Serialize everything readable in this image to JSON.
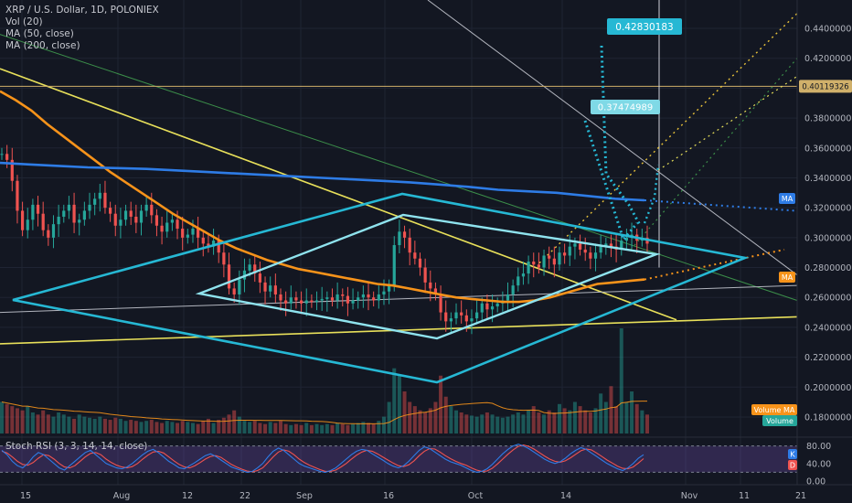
{
  "chart_data": {
    "type": "candlestick",
    "title": "XRP / U.S. Dollar, 1D, POLONIEX",
    "indicators": [
      "Vol (20)",
      "MA (50, close)",
      "MA (200, close)"
    ],
    "price_axis": {
      "ticks": [
        "0.44000000",
        "0.42000000",
        "0.40000000",
        "0.38000000",
        "0.36000000",
        "0.34000000",
        "0.32000000",
        "0.30000000",
        "0.28000000",
        "0.26000000",
        "0.24000000",
        "0.22000000",
        "0.20000000",
        "0.18000000"
      ],
      "range": [
        0.17,
        0.455
      ]
    },
    "time_axis": {
      "ticks": [
        "15",
        "Aug",
        "12",
        "22",
        "Sep",
        "16",
        "Oct",
        "14",
        "Nov",
        "11",
        "21"
      ]
    },
    "price_labels": {
      "horizontal_level": "0.40119326",
      "annotation_high": "0.42830183",
      "annotation_mid": "0.37474989",
      "ma_label": "MA",
      "ma_small": "MA",
      "volume_ma": "Volume MA",
      "volume": "Volume"
    },
    "rsi": {
      "title": "Stoch RSI (3, 3, 14, 14, close)",
      "ticks": [
        "80.00",
        "40.00",
        "0.00"
      ],
      "k_label": "K",
      "d_label": "D",
      "range": [
        0,
        100
      ],
      "upper_band": 80,
      "lower_band": 20
    },
    "candles_close": [
      0.356,
      0.352,
      0.338,
      0.318,
      0.305,
      0.312,
      0.322,
      0.316,
      0.305,
      0.3,
      0.309,
      0.314,
      0.318,
      0.322,
      0.31,
      0.312,
      0.318,
      0.322,
      0.326,
      0.33,
      0.32,
      0.316,
      0.308,
      0.312,
      0.318,
      0.314,
      0.31,
      0.318,
      0.322,
      0.315,
      0.308,
      0.304,
      0.31,
      0.312,
      0.306,
      0.3,
      0.302,
      0.306,
      0.3,
      0.296,
      0.294,
      0.298,
      0.29,
      0.282,
      0.266,
      0.262,
      0.272,
      0.278,
      0.282,
      0.276,
      0.27,
      0.264,
      0.268,
      0.262,
      0.258,
      0.256,
      0.26,
      0.258,
      0.256,
      0.258,
      0.257,
      0.258,
      0.259,
      0.26,
      0.258,
      0.262,
      0.261,
      0.256,
      0.258,
      0.26,
      0.262,
      0.26,
      0.258,
      0.262,
      0.264,
      0.268,
      0.295,
      0.304,
      0.3,
      0.29,
      0.286,
      0.28,
      0.27,
      0.266,
      0.262,
      0.25,
      0.244,
      0.246,
      0.25,
      0.248,
      0.244,
      0.246,
      0.25,
      0.256,
      0.252,
      0.254,
      0.256,
      0.258,
      0.262,
      0.268,
      0.274,
      0.276,
      0.284,
      0.282,
      0.28,
      0.288,
      0.286,
      0.282,
      0.29,
      0.288,
      0.294,
      0.296,
      0.292,
      0.29,
      0.286,
      0.29,
      0.294,
      0.296,
      0.294,
      0.292,
      0.298,
      0.3,
      0.302,
      0.298,
      0.3,
      0.296
    ],
    "ma50": [
      0.398,
      0.392,
      0.385,
      0.376,
      0.368,
      0.36,
      0.352,
      0.344,
      0.337,
      0.33,
      0.323,
      0.316,
      0.31,
      0.304,
      0.298,
      0.293,
      0.289,
      0.285,
      0.282,
      0.279,
      0.277,
      0.275,
      0.273,
      0.271,
      0.269,
      0.268,
      0.266,
      0.264,
      0.262,
      0.26,
      0.259,
      0.258,
      0.257,
      0.257,
      0.258,
      0.26,
      0.263,
      0.266,
      0.269,
      0.27,
      0.271,
      0.272
    ],
    "ma200": [
      0.35,
      0.349,
      0.348,
      0.347,
      0.3465,
      0.346,
      0.345,
      0.344,
      0.343,
      0.342,
      0.341,
      0.34,
      0.339,
      0.338,
      0.337,
      0.3355,
      0.334,
      0.332,
      0.331,
      0.33,
      0.328,
      0.326,
      0.325
    ],
    "volume": [
      0.3,
      0.28,
      0.26,
      0.24,
      0.22,
      0.26,
      0.2,
      0.18,
      0.22,
      0.18,
      0.16,
      0.2,
      0.18,
      0.16,
      0.14,
      0.18,
      0.16,
      0.15,
      0.14,
      0.16,
      0.14,
      0.13,
      0.15,
      0.14,
      0.12,
      0.13,
      0.12,
      0.11,
      0.12,
      0.13,
      0.11,
      0.1,
      0.12,
      0.11,
      0.1,
      0.12,
      0.11,
      0.1,
      0.09,
      0.12,
      0.14,
      0.1,
      0.13,
      0.15,
      0.18,
      0.22,
      0.16,
      0.12,
      0.11,
      0.12,
      0.1,
      0.09,
      0.11,
      0.1,
      0.12,
      0.09,
      0.08,
      0.09,
      0.08,
      0.1,
      0.08,
      0.09,
      0.08,
      0.09,
      0.08,
      0.1,
      0.09,
      0.08,
      0.09,
      0.1,
      0.11,
      0.1,
      0.09,
      0.12,
      0.16,
      0.3,
      0.62,
      0.55,
      0.4,
      0.3,
      0.26,
      0.22,
      0.2,
      0.24,
      0.3,
      0.55,
      0.35,
      0.26,
      0.22,
      0.2,
      0.18,
      0.17,
      0.16,
      0.18,
      0.2,
      0.18,
      0.16,
      0.15,
      0.16,
      0.18,
      0.2,
      0.18,
      0.22,
      0.26,
      0.2,
      0.18,
      0.22,
      0.2,
      0.28,
      0.24,
      0.22,
      0.3,
      0.26,
      0.22,
      0.2,
      0.24,
      0.38,
      0.3,
      0.45,
      0.26,
      1.0,
      0.3,
      0.4,
      0.28,
      0.22,
      0.18
    ],
    "stoch_k": [
      70,
      60,
      45,
      35,
      30,
      40,
      55,
      65,
      60,
      50,
      40,
      30,
      25,
      35,
      45,
      55,
      65,
      70,
      60,
      50,
      40,
      35,
      30,
      28,
      32,
      40,
      50,
      60,
      68,
      72,
      65,
      55,
      45,
      38,
      30,
      28,
      35,
      42,
      50,
      58,
      62,
      56,
      48,
      40,
      32,
      28,
      24,
      20,
      22,
      30,
      40,
      55,
      68,
      75,
      70,
      60,
      50,
      40,
      34,
      30,
      26,
      22,
      20,
      24,
      30,
      40,
      50,
      60,
      68,
      72,
      70,
      62,
      55,
      48,
      40,
      34,
      30,
      35,
      45,
      58,
      70,
      78,
      74,
      66,
      58,
      50,
      44,
      40,
      36,
      30,
      24,
      20,
      22,
      28,
      38,
      50,
      62,
      72,
      80,
      84,
      80,
      74,
      66,
      58,
      50,
      44,
      40,
      44,
      52,
      62,
      70,
      76,
      72,
      64,
      56,
      48,
      40,
      34,
      28,
      24,
      30,
      40,
      52,
      60
    ],
    "stoch_d": [
      68,
      64,
      55,
      45,
      38,
      36,
      42,
      52,
      60,
      58,
      50,
      40,
      32,
      30,
      35,
      45,
      55,
      63,
      65,
      60,
      50,
      42,
      36,
      32,
      30,
      33,
      40,
      50,
      59,
      66,
      68,
      64,
      55,
      46,
      38,
      32,
      30,
      35,
      42,
      50,
      56,
      58,
      54,
      46,
      38,
      32,
      27,
      23,
      21,
      24,
      30,
      42,
      55,
      66,
      71,
      68,
      60,
      50,
      42,
      36,
      31,
      26,
      22,
      22,
      25,
      32,
      40,
      50,
      59,
      66,
      70,
      68,
      62,
      55,
      48,
      41,
      35,
      33,
      37,
      46,
      58,
      68,
      74,
      73,
      66,
      58,
      51,
      45,
      40,
      36,
      30,
      25,
      22,
      23,
      29,
      39,
      50,
      61,
      71,
      79,
      82,
      79,
      73,
      65,
      57,
      50,
      45,
      43,
      46,
      53,
      61,
      69,
      73,
      71,
      64,
      56,
      48,
      41,
      34,
      29,
      28,
      32,
      41,
      51
    ]
  }
}
